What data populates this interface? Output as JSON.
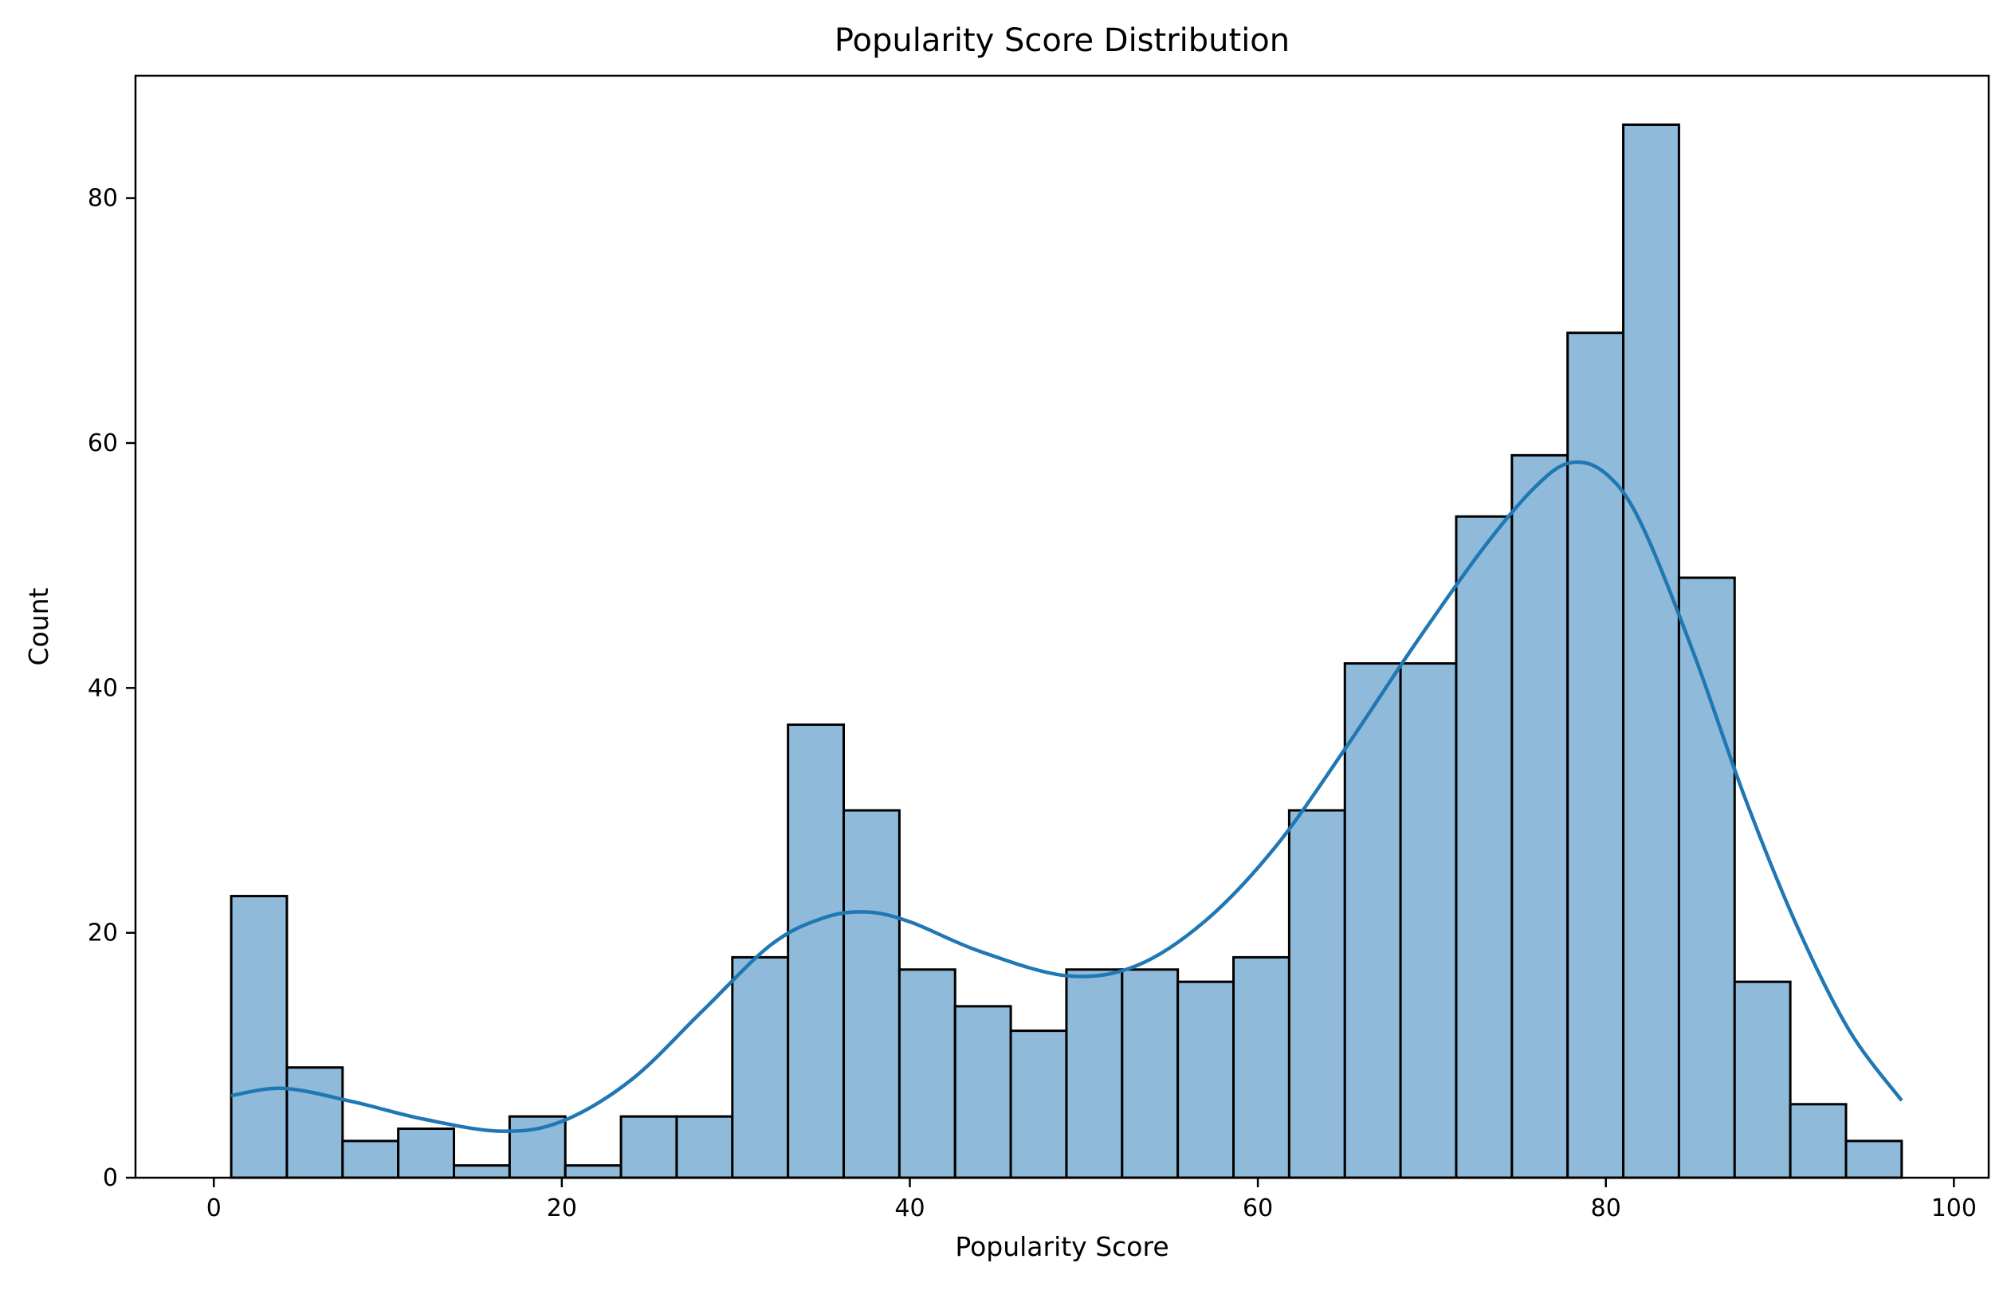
{
  "chart_data": {
    "type": "bar",
    "title": "Popularity Score Distribution",
    "xlabel": "Popularity Score",
    "ylabel": "Count",
    "xlim": [
      -4.5,
      102
    ],
    "ylim": [
      0,
      90
    ],
    "xticks": [
      0,
      20,
      40,
      60,
      80,
      100
    ],
    "yticks": [
      0,
      20,
      40,
      60,
      80
    ],
    "grid": false,
    "bin_start": 1,
    "bin_end": 97,
    "bin_count": 30,
    "values": [
      23,
      9,
      3,
      4,
      1,
      5,
      1,
      5,
      5,
      18,
      37,
      30,
      17,
      14,
      12,
      17,
      17,
      16,
      18,
      30,
      42,
      42,
      54,
      59,
      69,
      86,
      49,
      16,
      6,
      3
    ],
    "kde": {
      "x": [
        1,
        4,
        8,
        12,
        16.5,
        20,
        24,
        28,
        32,
        35,
        37.5,
        40,
        44,
        49,
        53,
        57,
        61,
        65,
        69,
        73,
        76,
        78,
        80,
        82,
        85,
        88,
        91,
        94,
        97
      ],
      "y": [
        6.7,
        7.3,
        6.2,
        4.8,
        3.8,
        4.6,
        8.0,
        13.5,
        19.0,
        21.2,
        21.7,
        20.9,
        18.5,
        16.5,
        17.3,
        21.0,
        27.0,
        35.0,
        43.5,
        51.5,
        56.5,
        58.4,
        57.5,
        53.5,
        43.0,
        31.0,
        20.5,
        12.0,
        6.3
      ]
    },
    "bar_color": "#8fbad9",
    "edge_color": "#000000",
    "line_color": "#1f77b4"
  }
}
